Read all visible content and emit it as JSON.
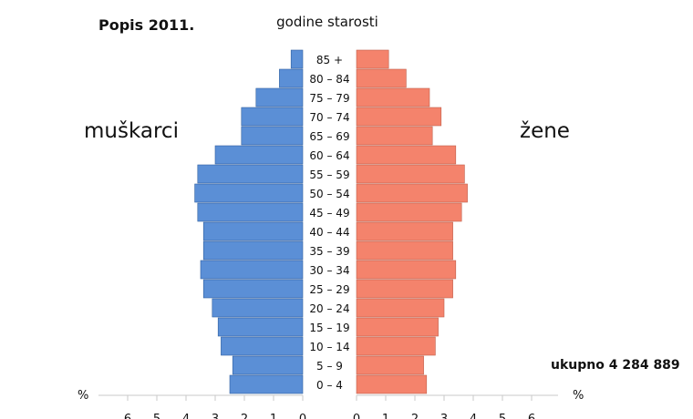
{
  "title": "Popis 2011.",
  "age_axis_label": "godine starosti",
  "left_group_label": "muškarci",
  "right_group_label": "žene",
  "total_label": "ukupno 4 284 889",
  "percent_symbol": "%",
  "colors": {
    "male": "#5b8fd6",
    "female": "#f4836c",
    "edge": "#2f5f9e",
    "edge_f": "#c0604c"
  },
  "chart_data": {
    "type": "bar",
    "orientation": "horizontal",
    "layout": "population-pyramid",
    "categories": [
      "85 +",
      "80 – 84",
      "75 – 79",
      "70 – 74",
      "65 – 69",
      "60 – 64",
      "55 – 59",
      "50 – 54",
      "45 – 49",
      "40 – 44",
      "35 – 39",
      "30 – 34",
      "25 – 29",
      "20 – 24",
      "15 – 19",
      "10 – 14",
      "5 – 9",
      "0 – 4"
    ],
    "series": [
      {
        "name": "muškarci",
        "values": [
          0.4,
          0.8,
          1.6,
          2.1,
          2.1,
          3.0,
          3.6,
          3.7,
          3.6,
          3.4,
          3.4,
          3.5,
          3.4,
          3.1,
          2.9,
          2.8,
          2.4,
          2.5
        ]
      },
      {
        "name": "žene",
        "values": [
          1.1,
          1.7,
          2.5,
          2.9,
          2.6,
          3.4,
          3.7,
          3.8,
          3.6,
          3.3,
          3.3,
          3.4,
          3.3,
          3.0,
          2.8,
          2.7,
          2.3,
          2.4
        ]
      }
    ],
    "xlim": [
      0,
      6
    ],
    "x_ticks": [
      0,
      1,
      2,
      3,
      4,
      5,
      6
    ],
    "x_unit": "%"
  }
}
